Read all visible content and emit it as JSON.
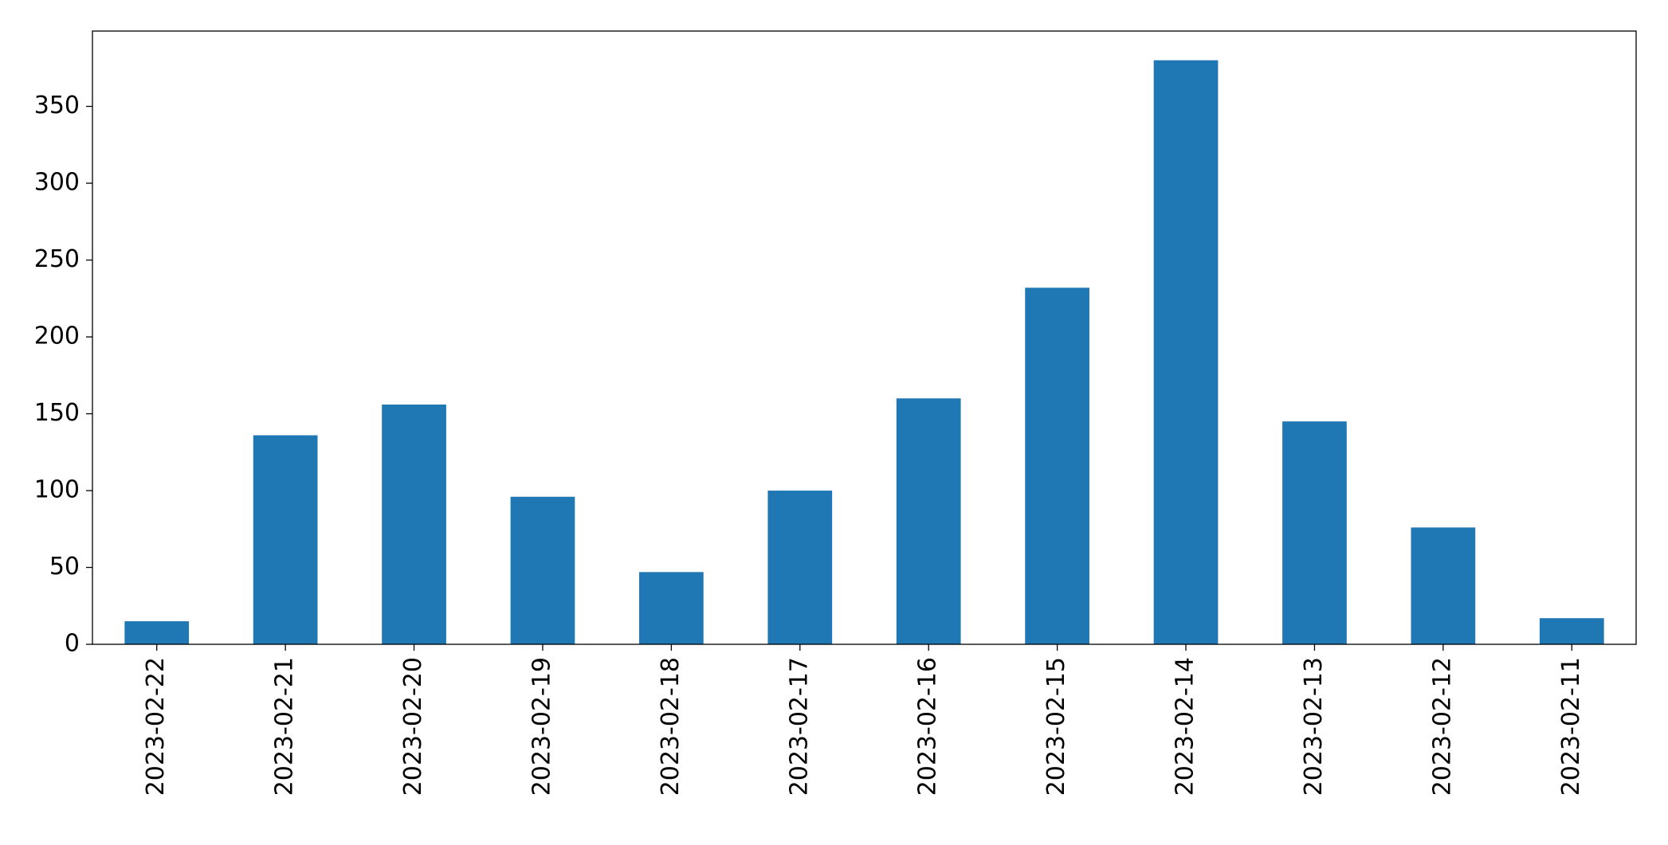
{
  "chart_data": {
    "type": "bar",
    "categories": [
      "2023-02-22",
      "2023-02-21",
      "2023-02-20",
      "2023-02-19",
      "2023-02-18",
      "2023-02-17",
      "2023-02-16",
      "2023-02-15",
      "2023-02-14",
      "2023-02-13",
      "2023-02-12",
      "2023-02-11"
    ],
    "values": [
      15,
      136,
      156,
      96,
      47,
      100,
      160,
      232,
      380,
      145,
      76,
      17
    ],
    "color": "#1f77b4",
    "ylim": [
      0,
      399
    ],
    "yticks": [
      0,
      50,
      100,
      150,
      200,
      250,
      300,
      350
    ],
    "grid": false
  }
}
